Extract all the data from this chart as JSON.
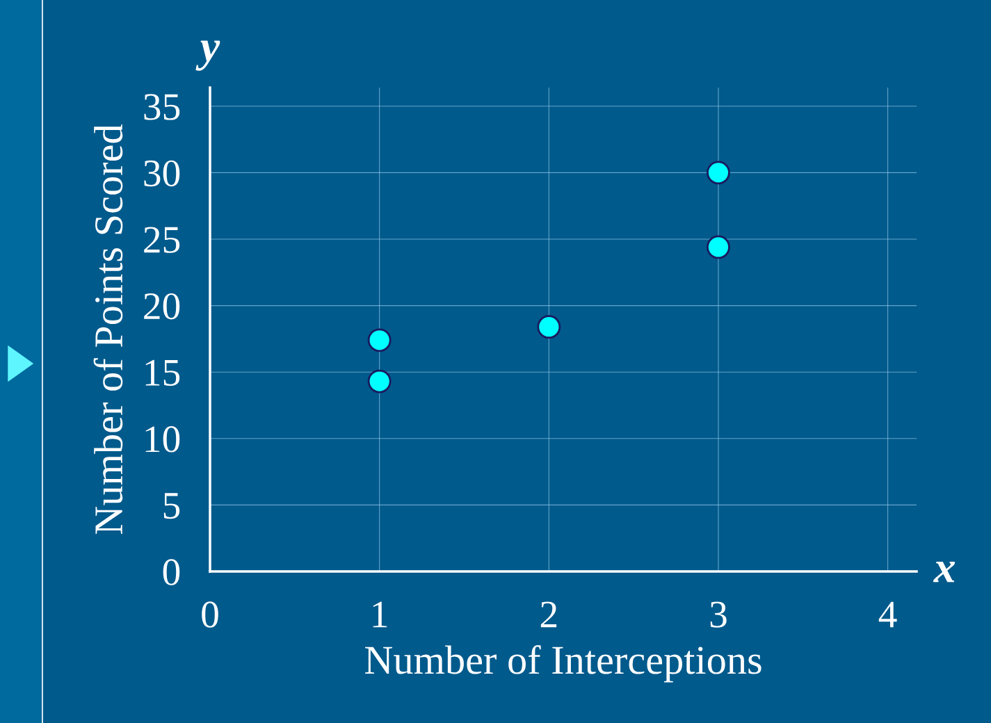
{
  "chart_data": {
    "type": "scatter",
    "xlabel": "Number of Interceptions",
    "ylabel": "Number of Points Scored",
    "annotations": [
      "y",
      "x"
    ],
    "series": [
      {
        "color": "#00ffff",
        "x": [
          1,
          1,
          2,
          3,
          3
        ],
        "values": [
          17.4,
          14.3,
          18.4,
          30.0,
          24.4
        ]
      }
    ],
    "xlim": [
      0,
      4.17
    ],
    "xticks": [
      0,
      1,
      2,
      3,
      4
    ],
    "ylim": [
      0,
      36.4
    ],
    "yticks": [
      0,
      5,
      10,
      15,
      20,
      25,
      30,
      35
    ],
    "grid": true,
    "marker": "circle"
  }
}
